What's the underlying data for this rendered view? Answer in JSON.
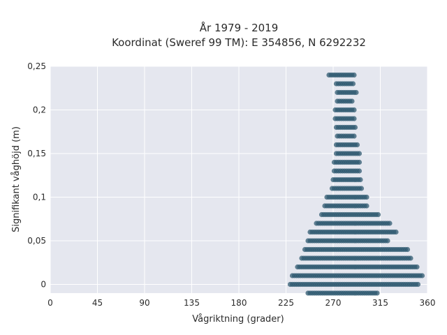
{
  "chart_data": {
    "type": "scatter",
    "title_line1": "År 1979 - 2019",
    "title_line2": "Koordinat (Sweref 99 TM): E 354856, N 6292232",
    "xlabel": "Vågriktning (grader)",
    "ylabel": "Signifikant våghöjd (m)",
    "xlim": [
      0,
      360
    ],
    "ylim": [
      -0.01,
      0.25
    ],
    "x_ticks": [
      0,
      45,
      90,
      135,
      180,
      225,
      270,
      315,
      360
    ],
    "x_tick_labels": [
      "0",
      "45",
      "90",
      "135",
      "180",
      "225",
      "270",
      "315",
      "360"
    ],
    "y_ticks": [
      0,
      0.05,
      0.1,
      0.15,
      0.2,
      0.25
    ],
    "y_tick_labels": [
      "0",
      "0,05",
      "0,1",
      "0,15",
      "0,2",
      "0,25"
    ],
    "grid": true,
    "marker_color": "#2f5a70",
    "plot_background": "#e5e7ef",
    "point_rows": [
      {
        "y": 0.24,
        "x_min": 266,
        "x_max": 291
      },
      {
        "y": 0.23,
        "x_min": 273,
        "x_max": 289
      },
      {
        "y": 0.22,
        "x_min": 274,
        "x_max": 292
      },
      {
        "y": 0.21,
        "x_min": 274,
        "x_max": 289
      },
      {
        "y": 0.2,
        "x_min": 272,
        "x_max": 290
      },
      {
        "y": 0.19,
        "x_min": 272,
        "x_max": 290
      },
      {
        "y": 0.18,
        "x_min": 273,
        "x_max": 292
      },
      {
        "y": 0.17,
        "x_min": 274,
        "x_max": 290
      },
      {
        "y": 0.16,
        "x_min": 273,
        "x_max": 293
      },
      {
        "y": 0.15,
        "x_min": 273,
        "x_max": 295
      },
      {
        "y": 0.14,
        "x_min": 271,
        "x_max": 296
      },
      {
        "y": 0.13,
        "x_min": 271,
        "x_max": 296
      },
      {
        "y": 0.12,
        "x_min": 270,
        "x_max": 296
      },
      {
        "y": 0.11,
        "x_min": 269,
        "x_max": 297
      },
      {
        "y": 0.1,
        "x_min": 264,
        "x_max": 303
      },
      {
        "y": 0.09,
        "x_min": 262,
        "x_max": 303
      },
      {
        "y": 0.08,
        "x_min": 259,
        "x_max": 313
      },
      {
        "y": 0.07,
        "x_min": 254,
        "x_max": 324
      },
      {
        "y": 0.06,
        "x_min": 248,
        "x_max": 330
      },
      {
        "y": 0.05,
        "x_min": 246,
        "x_max": 323
      },
      {
        "y": 0.04,
        "x_min": 243,
        "x_max": 342
      },
      {
        "y": 0.03,
        "x_min": 240,
        "x_max": 345
      },
      {
        "y": 0.02,
        "x_min": 236,
        "x_max": 351
      },
      {
        "y": 0.01,
        "x_min": 231,
        "x_max": 355
      },
      {
        "y": 0.0,
        "x_min": 229,
        "x_max": 351
      },
      {
        "y": -0.01,
        "x_min": 246,
        "x_max": 312
      }
    ]
  }
}
